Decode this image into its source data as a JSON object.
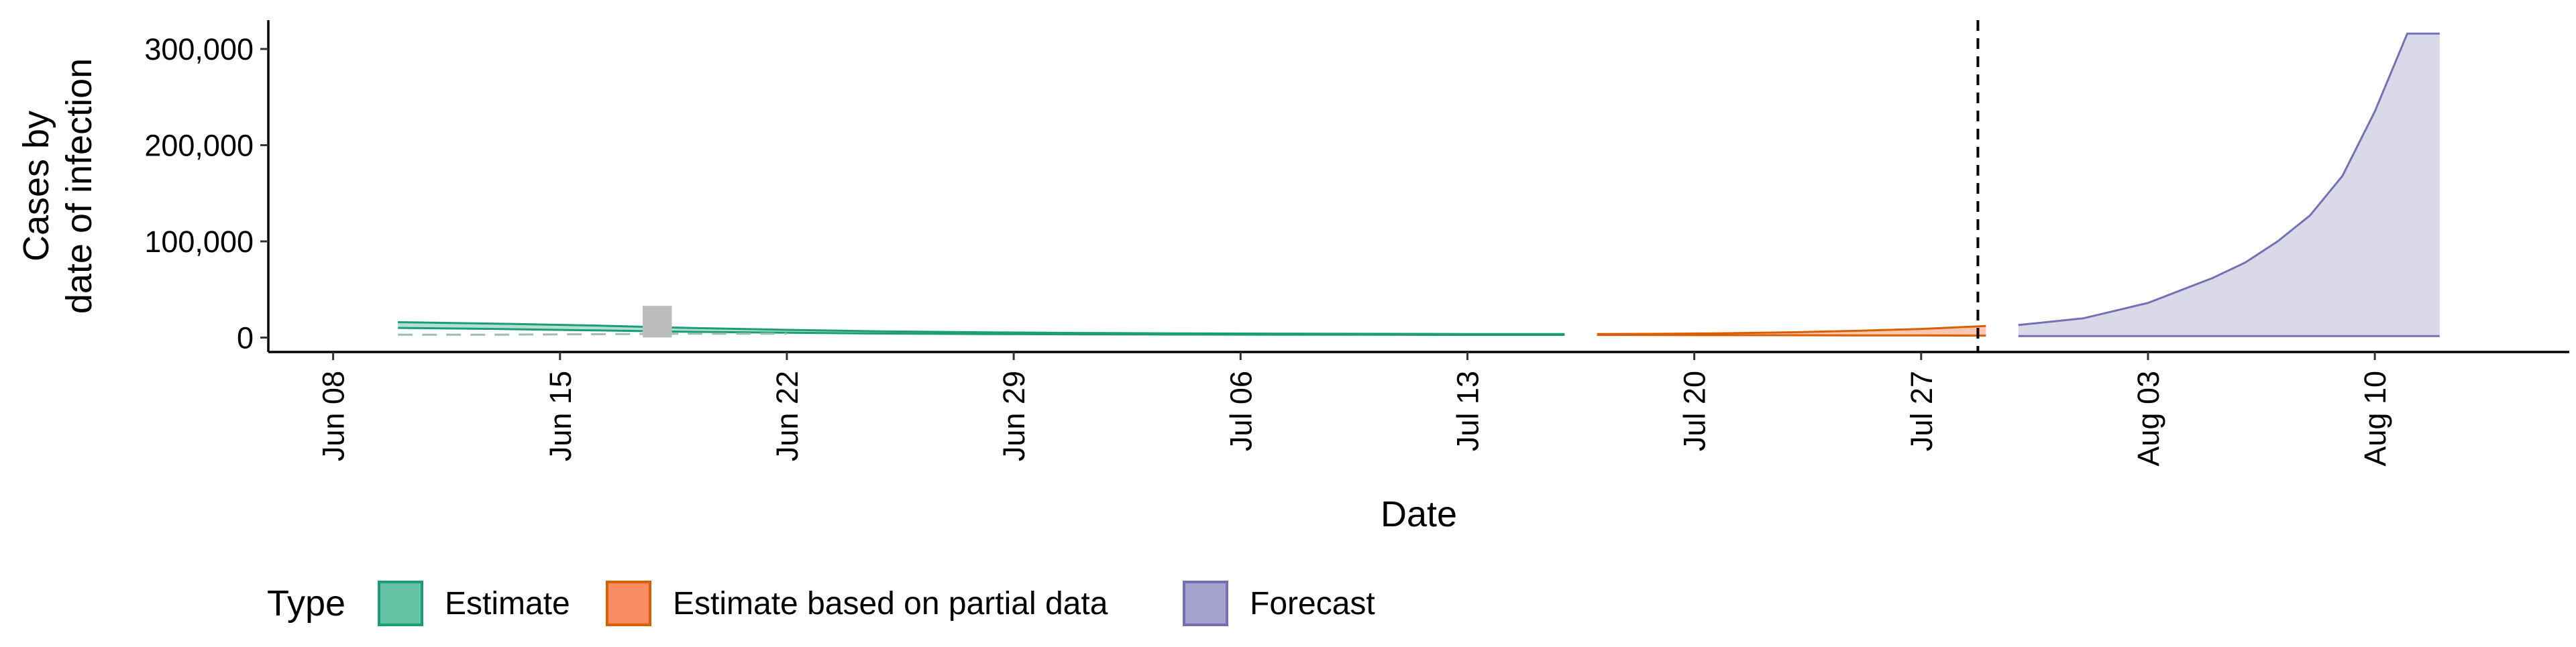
{
  "chart_data": {
    "type": "area",
    "xlabel": "Date",
    "ylabel_lines": [
      "Cases by",
      "date of infection"
    ],
    "x_range": [
      "2020-06-06",
      "2020-08-16"
    ],
    "ylim": [
      -15000,
      330000
    ],
    "y_ticks": [
      {
        "value": 0,
        "label": "0"
      },
      {
        "value": 100000,
        "label": "100,000"
      },
      {
        "value": 200000,
        "label": "200,000"
      },
      {
        "value": 300000,
        "label": "300,000"
      }
    ],
    "x_ticks": [
      {
        "date": "2020-06-08",
        "label": "Jun 08"
      },
      {
        "date": "2020-06-15",
        "label": "Jun 15"
      },
      {
        "date": "2020-06-22",
        "label": "Jun 22"
      },
      {
        "date": "2020-06-29",
        "label": "Jun 29"
      },
      {
        "date": "2020-07-06",
        "label": "Jul 06"
      },
      {
        "date": "2020-07-13",
        "label": "Jul 13"
      },
      {
        "date": "2020-07-20",
        "label": "Jul 20"
      },
      {
        "date": "2020-07-27",
        "label": "Jul 27"
      },
      {
        "date": "2020-08-03",
        "label": "Aug 03"
      },
      {
        "date": "2020-08-10",
        "label": "Aug 10"
      }
    ],
    "forecast_start_date": "2020-07-29",
    "legend": {
      "title": "Type",
      "position": "bottom",
      "entries": [
        {
          "label": "Estimate",
          "fill": "#66c2a5",
          "stroke": "#1b9e77"
        },
        {
          "label": "Estimate based on partial data",
          "fill": "#fc8d62",
          "stroke": "#d95f02"
        },
        {
          "label": "Forecast",
          "fill": "#a6a2d0",
          "stroke": "#7570b3"
        }
      ]
    },
    "observed_bars": [
      {
        "date": "2020-06-18",
        "value": 33000,
        "color": "#bdbdbd"
      }
    ],
    "series": [
      {
        "name": "Estimate",
        "fill": "#66c2a5",
        "stroke": "#1b9e77",
        "x": [
          "2020-06-10",
          "2020-06-13",
          "2020-06-16",
          "2020-06-19",
          "2020-06-22",
          "2020-06-25",
          "2020-06-28",
          "2020-07-01",
          "2020-07-04",
          "2020-07-07",
          "2020-07-10",
          "2020-07-13",
          "2020-07-16"
        ],
        "lower": [
          10000,
          9000,
          7500,
          6000,
          5000,
          4200,
          3700,
          3300,
          3100,
          3000,
          2900,
          2800,
          2800
        ],
        "upper": [
          16000,
          14500,
          12500,
          10000,
          8000,
          6500,
          5500,
          4800,
          4400,
          4100,
          3900,
          3700,
          3600
        ],
        "reported_dashed": {
          "x": [
            "2020-06-10",
            "2020-06-13",
            "2020-06-16",
            "2020-06-19",
            "2020-06-22"
          ],
          "y": [
            3000,
            3000,
            3500,
            4000,
            4000
          ]
        }
      },
      {
        "name": "Estimate based on partial data",
        "fill": "#fc8d62",
        "stroke": "#d95f02",
        "x": [
          "2020-07-17",
          "2020-07-19",
          "2020-07-21",
          "2020-07-23",
          "2020-07-25",
          "2020-07-27",
          "2020-07-29"
        ],
        "lower": [
          2700,
          2600,
          2500,
          2400,
          2300,
          2200,
          2000
        ],
        "upper": [
          3600,
          3900,
          4500,
          5500,
          7000,
          9000,
          12000
        ]
      },
      {
        "name": "Forecast",
        "fill": "#dad9ea",
        "stroke": "#7570b3",
        "x": [
          "2020-07-30",
          "2020-08-01",
          "2020-08-03",
          "2020-08-05",
          "2020-08-06",
          "2020-08-07",
          "2020-08-08",
          "2020-08-09",
          "2020-08-10",
          "2020-08-11",
          "2020-08-12"
        ],
        "lower": [
          1500,
          1500,
          1500,
          1500,
          1500,
          1500,
          1500,
          1500,
          1500,
          1500,
          1500
        ],
        "upper": [
          13000,
          20000,
          36000,
          62000,
          78000,
          100000,
          127000,
          168000,
          235000,
          316000,
          316000
        ]
      }
    ]
  }
}
